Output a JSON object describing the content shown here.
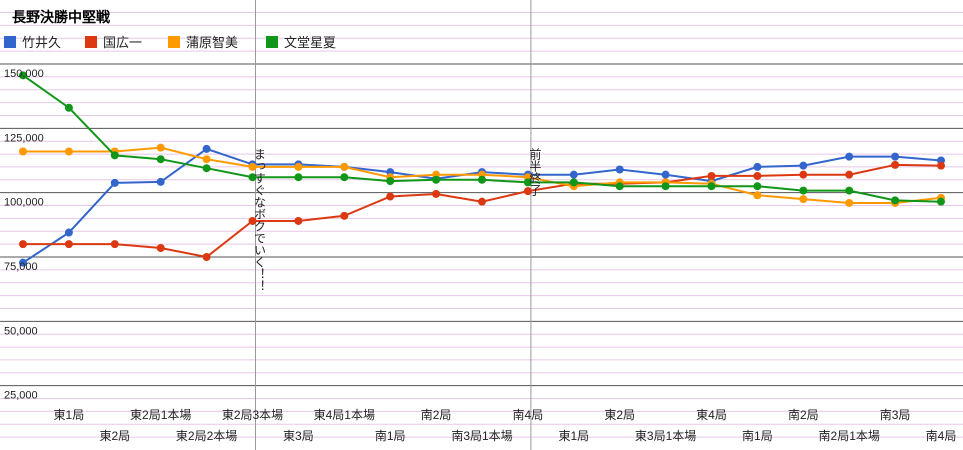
{
  "chart_data": {
    "type": "line",
    "title": "長野決勝中堅戦",
    "legend_position": "top-left",
    "grid": true,
    "ylim": [
      0,
      175000
    ],
    "y_ticks": [
      {
        "value": 150000,
        "label": "150,000"
      },
      {
        "value": 125000,
        "label": "125,000"
      },
      {
        "value": 100000,
        "label": "100,000"
      },
      {
        "value": 75000,
        "label": "75,000"
      },
      {
        "value": 50000,
        "label": "50,000"
      },
      {
        "value": 25000,
        "label": "25,000"
      }
    ],
    "categories": [
      "",
      "東1局",
      "東2局",
      "東2局1本場",
      "東2局2本場",
      "東2局3本場",
      "東3局",
      "東4局1本場",
      "南1局",
      "南2局",
      "南3局1本場",
      "南4局",
      "東1局",
      "東2局",
      "東3局1本場",
      "東4局",
      "南1局",
      "南2局",
      "南2局1本場",
      "南3局",
      "南4局"
    ],
    "series": [
      {
        "name": "竹井久",
        "color": "#3366cc",
        "values": [
          72800,
          84500,
          103800,
          104200,
          117000,
          111000,
          111000,
          110000,
          108000,
          105400,
          108000,
          107000,
          107000,
          109000,
          107000,
          104500,
          110000,
          110500,
          114000,
          114000,
          112500
        ]
      },
      {
        "name": "国広一",
        "color": "#dc3912",
        "values": [
          80000,
          80000,
          80000,
          78500,
          75000,
          89000,
          89000,
          91000,
          98500,
          99500,
          96500,
          100600,
          103500,
          103500,
          104000,
          106500,
          106500,
          107000,
          107000,
          110800,
          110500
        ]
      },
      {
        "name": "蒲原智美",
        "color": "#ff9900",
        "values": [
          116000,
          116000,
          116000,
          117500,
          113000,
          110000,
          110000,
          110000,
          106000,
          107000,
          107000,
          106000,
          102500,
          104000,
          104000,
          103500,
          99000,
          97500,
          96000,
          96000,
          98000
        ]
      },
      {
        "name": "文堂星夏",
        "color": "#109618",
        "values": [
          145600,
          133000,
          114500,
          113000,
          109500,
          106000,
          106000,
          106000,
          104500,
          105000,
          105000,
          104000,
          104000,
          102500,
          102500,
          102500,
          102500,
          100800,
          100800,
          97000,
          96500
        ]
      }
    ],
    "annotations": [
      {
        "category": "東2局3本場",
        "label": "まっすぐなボクでいく！！"
      },
      {
        "category": "南4局",
        "label": "前半終了"
      }
    ]
  }
}
